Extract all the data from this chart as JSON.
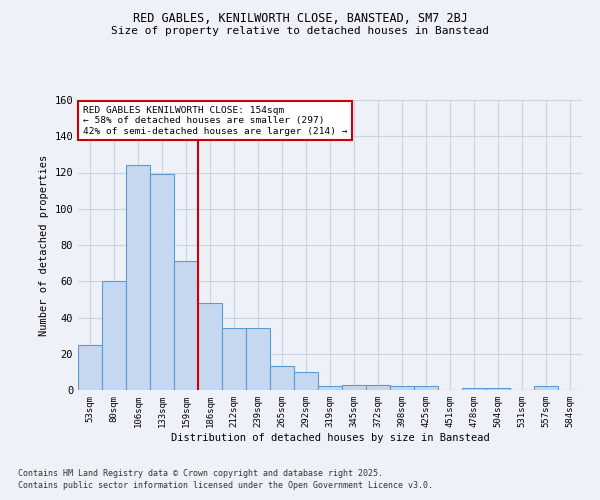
{
  "title1": "RED GABLES, KENILWORTH CLOSE, BANSTEAD, SM7 2BJ",
  "title2": "Size of property relative to detached houses in Banstead",
  "xlabel": "Distribution of detached houses by size in Banstead",
  "ylabel": "Number of detached properties",
  "categories": [
    "53sqm",
    "80sqm",
    "106sqm",
    "133sqm",
    "159sqm",
    "186sqm",
    "212sqm",
    "239sqm",
    "265sqm",
    "292sqm",
    "319sqm",
    "345sqm",
    "372sqm",
    "398sqm",
    "425sqm",
    "451sqm",
    "478sqm",
    "504sqm",
    "531sqm",
    "557sqm",
    "584sqm"
  ],
  "values": [
    25,
    60,
    124,
    119,
    71,
    48,
    34,
    34,
    13,
    10,
    2,
    3,
    3,
    2,
    2,
    0,
    1,
    1,
    0,
    2,
    0
  ],
  "bar_color": "#c5d8f0",
  "bar_edge_color": "#5b9bd5",
  "red_line_x": 4.5,
  "annotation_text": "RED GABLES KENILWORTH CLOSE: 154sqm\n← 58% of detached houses are smaller (297)\n42% of semi-detached houses are larger (214) →",
  "annotation_box_color": "#ffffff",
  "annotation_box_edge": "#cc0000",
  "grid_color": "#c8d4e8",
  "background_color": "#eef2f8",
  "red_line_color": "#cc0000",
  "ylim": [
    0,
    160
  ],
  "yticks": [
    0,
    20,
    40,
    60,
    80,
    100,
    120,
    140,
    160
  ],
  "footer1": "Contains HM Land Registry data © Crown copyright and database right 2025.",
  "footer2": "Contains public sector information licensed under the Open Government Licence v3.0."
}
